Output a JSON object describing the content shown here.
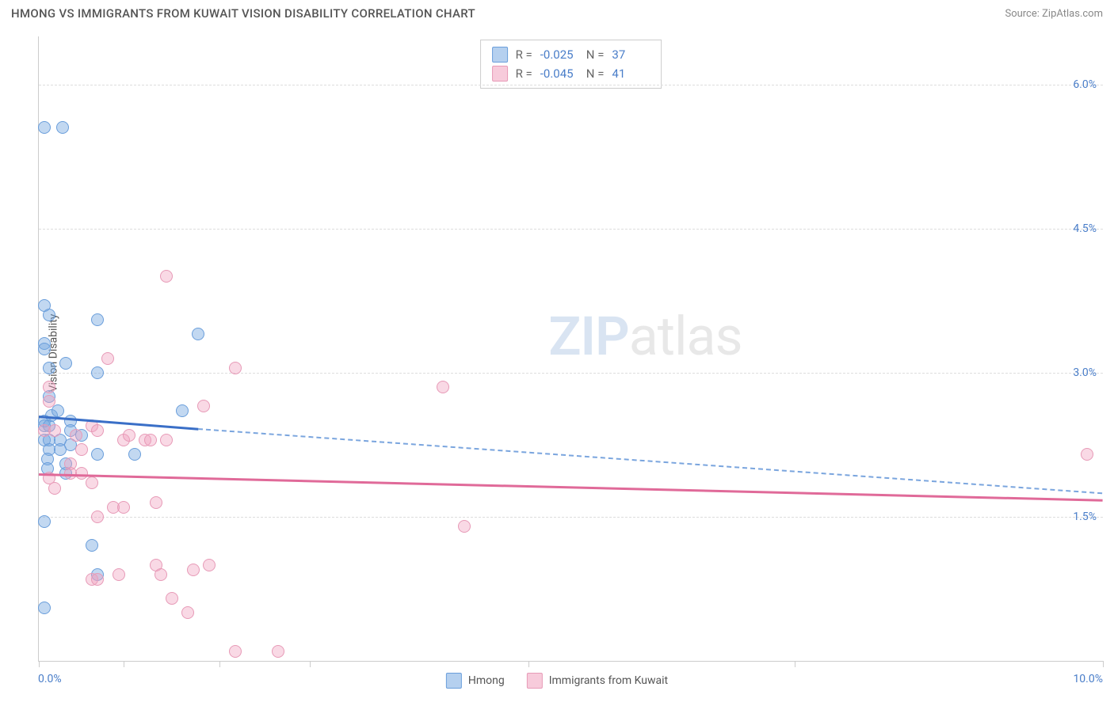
{
  "header": {
    "title": "HMONG VS IMMIGRANTS FROM KUWAIT VISION DISABILITY CORRELATION CHART",
    "source": "Source: ZipAtlas.com"
  },
  "chart": {
    "type": "scatter",
    "ylabel": "Vision Disability",
    "xlim": [
      0.0,
      10.0
    ],
    "ylim": [
      0.0,
      6.5
    ],
    "yticks": [
      {
        "pos": 1.5,
        "label": "1.5%"
      },
      {
        "pos": 3.0,
        "label": "3.0%"
      },
      {
        "pos": 4.5,
        "label": "4.5%"
      },
      {
        "pos": 6.0,
        "label": "6.0%"
      }
    ],
    "xticks_pos": [
      0.0,
      0.8,
      1.7,
      2.55,
      4.6,
      7.1,
      10.0
    ],
    "xaxis_labels": [
      {
        "pos": 0.0,
        "text": "0.0%",
        "align": "left"
      },
      {
        "pos": 10.0,
        "text": "10.0%",
        "align": "right"
      }
    ],
    "colors": {
      "blue_fill": "#78a9e1",
      "blue_stroke": "#6a9edb",
      "blue_line": "#3a6fc7",
      "pink_fill": "#f0a0be",
      "pink_stroke": "#e79ab7",
      "pink_line": "#e06a99",
      "grid": "#dddddd",
      "tick_label": "#4a7ec9",
      "background": "#ffffff"
    },
    "marker_radius": 8,
    "series": [
      {
        "name": "Hmong",
        "color_key": "blue",
        "r_value": "-0.025",
        "n_value": "37",
        "trend_solid": {
          "x1": 0.0,
          "y1": 2.55,
          "x2": 1.5,
          "y2": 2.42
        },
        "trend_dash": {
          "x1": 1.5,
          "y1": 2.42,
          "x2": 10.0,
          "y2": 1.75
        },
        "points": [
          [
            0.05,
            5.55
          ],
          [
            0.22,
            5.55
          ],
          [
            0.05,
            3.7
          ],
          [
            0.1,
            3.6
          ],
          [
            0.55,
            3.55
          ],
          [
            0.05,
            3.3
          ],
          [
            0.05,
            3.25
          ],
          [
            0.1,
            3.05
          ],
          [
            0.25,
            3.1
          ],
          [
            0.55,
            3.0
          ],
          [
            0.1,
            2.75
          ],
          [
            0.05,
            2.5
          ],
          [
            0.05,
            2.45
          ],
          [
            0.1,
            2.45
          ],
          [
            0.05,
            2.3
          ],
          [
            0.1,
            2.3
          ],
          [
            0.1,
            2.2
          ],
          [
            0.2,
            2.3
          ],
          [
            0.2,
            2.2
          ],
          [
            0.3,
            2.5
          ],
          [
            0.3,
            2.4
          ],
          [
            0.3,
            2.25
          ],
          [
            0.4,
            2.35
          ],
          [
            0.08,
            2.1
          ],
          [
            0.08,
            2.0
          ],
          [
            0.05,
            1.45
          ],
          [
            0.55,
            2.15
          ],
          [
            0.9,
            2.15
          ],
          [
            1.35,
            2.6
          ],
          [
            1.5,
            3.4
          ],
          [
            0.5,
            1.2
          ],
          [
            0.55,
            0.9
          ],
          [
            0.05,
            0.55
          ],
          [
            0.25,
            1.95
          ],
          [
            0.25,
            2.05
          ],
          [
            0.12,
            2.55
          ],
          [
            0.18,
            2.6
          ]
        ]
      },
      {
        "name": "Immigrants from Kuwait",
        "color_key": "pink",
        "r_value": "-0.045",
        "n_value": "41",
        "trend_solid": {
          "x1": 0.0,
          "y1": 1.95,
          "x2": 10.0,
          "y2": 1.68
        },
        "points": [
          [
            1.2,
            4.0
          ],
          [
            0.65,
            3.15
          ],
          [
            1.85,
            3.05
          ],
          [
            3.8,
            2.85
          ],
          [
            0.1,
            2.85
          ],
          [
            0.1,
            2.7
          ],
          [
            0.05,
            2.4
          ],
          [
            0.15,
            2.4
          ],
          [
            0.3,
            2.05
          ],
          [
            0.35,
            2.35
          ],
          [
            0.3,
            1.95
          ],
          [
            0.4,
            2.2
          ],
          [
            0.5,
            2.45
          ],
          [
            0.55,
            2.4
          ],
          [
            0.8,
            2.3
          ],
          [
            0.85,
            2.35
          ],
          [
            1.0,
            2.3
          ],
          [
            1.2,
            2.3
          ],
          [
            1.55,
            2.65
          ],
          [
            1.05,
            2.3
          ],
          [
            0.1,
            1.9
          ],
          [
            0.15,
            1.8
          ],
          [
            0.4,
            1.95
          ],
          [
            0.5,
            1.85
          ],
          [
            0.7,
            1.6
          ],
          [
            0.8,
            1.6
          ],
          [
            1.1,
            1.65
          ],
          [
            0.55,
            1.5
          ],
          [
            0.5,
            0.85
          ],
          [
            0.55,
            0.85
          ],
          [
            0.75,
            0.9
          ],
          [
            1.1,
            1.0
          ],
          [
            1.15,
            0.9
          ],
          [
            1.45,
            0.95
          ],
          [
            1.6,
            1.0
          ],
          [
            1.25,
            0.65
          ],
          [
            1.4,
            0.5
          ],
          [
            1.85,
            0.1
          ],
          [
            2.25,
            0.1
          ],
          [
            4.0,
            1.4
          ],
          [
            9.85,
            2.15
          ]
        ]
      }
    ],
    "legend_top": {
      "r_label": "R =",
      "n_label": "N ="
    },
    "legend_bottom": [
      {
        "color": "blue",
        "label": "Hmong"
      },
      {
        "color": "pink",
        "label": "Immigrants from Kuwait"
      }
    ],
    "watermark": {
      "part1": "ZIP",
      "part2": "atlas"
    }
  }
}
